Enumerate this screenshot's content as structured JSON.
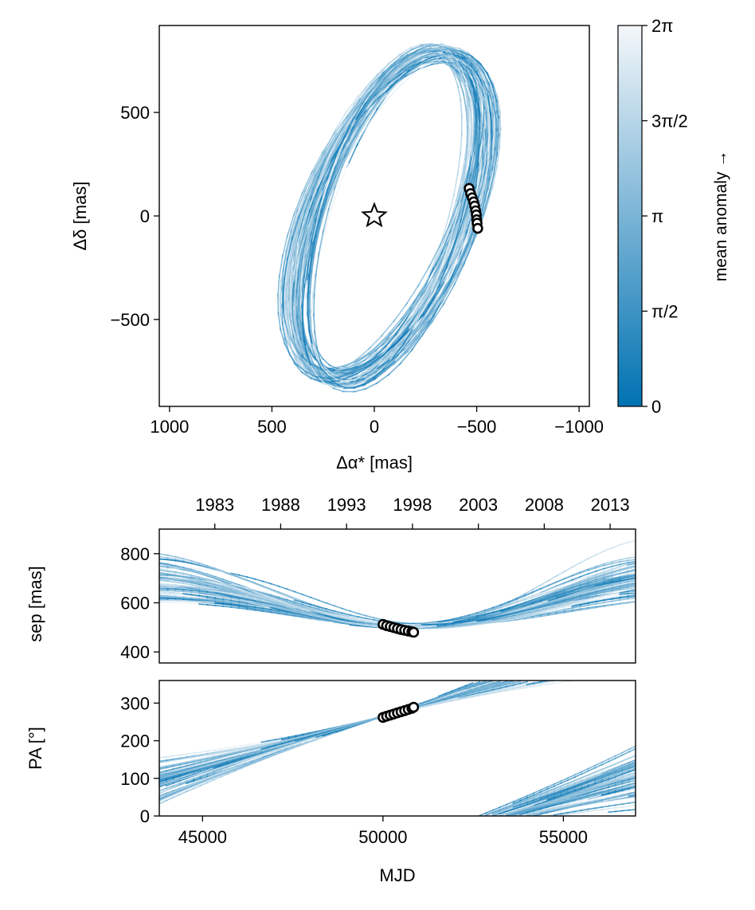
{
  "chart_data": [
    {
      "id": "orbit",
      "type": "line",
      "xlabel": "Δα* [mas]",
      "ylabel": "Δδ [mas]",
      "xlim": [
        1050,
        -1050
      ],
      "ylim": [
        -920,
        920
      ],
      "xticks": [
        {
          "v": 1000,
          "label": "1000"
        },
        {
          "v": 500,
          "label": "500"
        },
        {
          "v": 0,
          "label": "0"
        },
        {
          "v": -500,
          "label": "−500"
        },
        {
          "v": -1000,
          "label": "−1000"
        }
      ],
      "yticks": [
        {
          "v": 500,
          "label": "500"
        },
        {
          "v": 0,
          "label": "0"
        },
        {
          "v": -500,
          "label": "−500"
        }
      ],
      "star": {
        "x": 0,
        "y": 0
      },
      "observations": [
        {
          "x": -463,
          "y": 133
        },
        {
          "x": -470,
          "y": 108
        },
        {
          "x": -478,
          "y": 88
        },
        {
          "x": -485,
          "y": 68
        },
        {
          "x": -490,
          "y": 48
        },
        {
          "x": -495,
          "y": 25
        },
        {
          "x": -498,
          "y": 5
        },
        {
          "x": -500,
          "y": -18
        },
        {
          "x": -502,
          "y": -35
        },
        {
          "x": -505,
          "y": -60
        }
      ],
      "orbit_model": {
        "n_orbits": 60,
        "center_x_range": [
          -108,
          -42
        ],
        "center_y_range": [
          -18,
          18
        ],
        "semi_major_range": [
          800,
          870
        ],
        "semi_minor_range": [
          300,
          412
        ],
        "tilt_deg_range": [
          -74,
          -62
        ]
      }
    },
    {
      "id": "sep",
      "type": "line",
      "ylabel": "sep [mas]",
      "xlim": [
        43800,
        57000
      ],
      "ylim": [
        355,
        900
      ],
      "yticks": [
        {
          "v": 400,
          "label": "400"
        },
        {
          "v": 600,
          "label": "600"
        },
        {
          "v": 800,
          "label": "800"
        }
      ],
      "top_axis_years": [
        "1983",
        "1988",
        "1993",
        "1998",
        "2003",
        "2008",
        "2013"
      ],
      "observations_mjd": [
        50000,
        50100,
        50200,
        50300,
        50400,
        50500,
        50600,
        50700,
        50800,
        50850
      ],
      "observations_sep": [
        512,
        507,
        503,
        499,
        495,
        491,
        488,
        485,
        482,
        480
      ]
    },
    {
      "id": "pa",
      "type": "line",
      "xlabel": "MJD",
      "ylabel": "PA [°]",
      "xlim": [
        43800,
        57000
      ],
      "ylim": [
        0,
        360
      ],
      "xticks": [
        {
          "v": 45000,
          "label": "45000"
        },
        {
          "v": 50000,
          "label": "50000"
        },
        {
          "v": 55000,
          "label": "55000"
        }
      ],
      "yticks": [
        {
          "v": 0,
          "label": "0"
        },
        {
          "v": 100,
          "label": "100"
        },
        {
          "v": 200,
          "label": "200"
        },
        {
          "v": 300,
          "label": "300"
        }
      ],
      "observations_mjd": [
        50000,
        50100,
        50200,
        50300,
        50400,
        50500,
        50600,
        50700,
        50800,
        50850
      ],
      "observations_pa": [
        262,
        265,
        268,
        271,
        274,
        277,
        280,
        283,
        286,
        289
      ]
    }
  ],
  "colorbar": {
    "label": "mean anomaly →",
    "color_low": "#0072b2",
    "color_high": "#f4f7fa",
    "ticks": [
      {
        "v": 0,
        "label": "0"
      },
      {
        "v": 0.25,
        "label": "π/2"
      },
      {
        "v": 0.5,
        "label": "π"
      },
      {
        "v": 0.75,
        "label": "3π/2"
      },
      {
        "v": 1,
        "label": "2π"
      }
    ]
  }
}
